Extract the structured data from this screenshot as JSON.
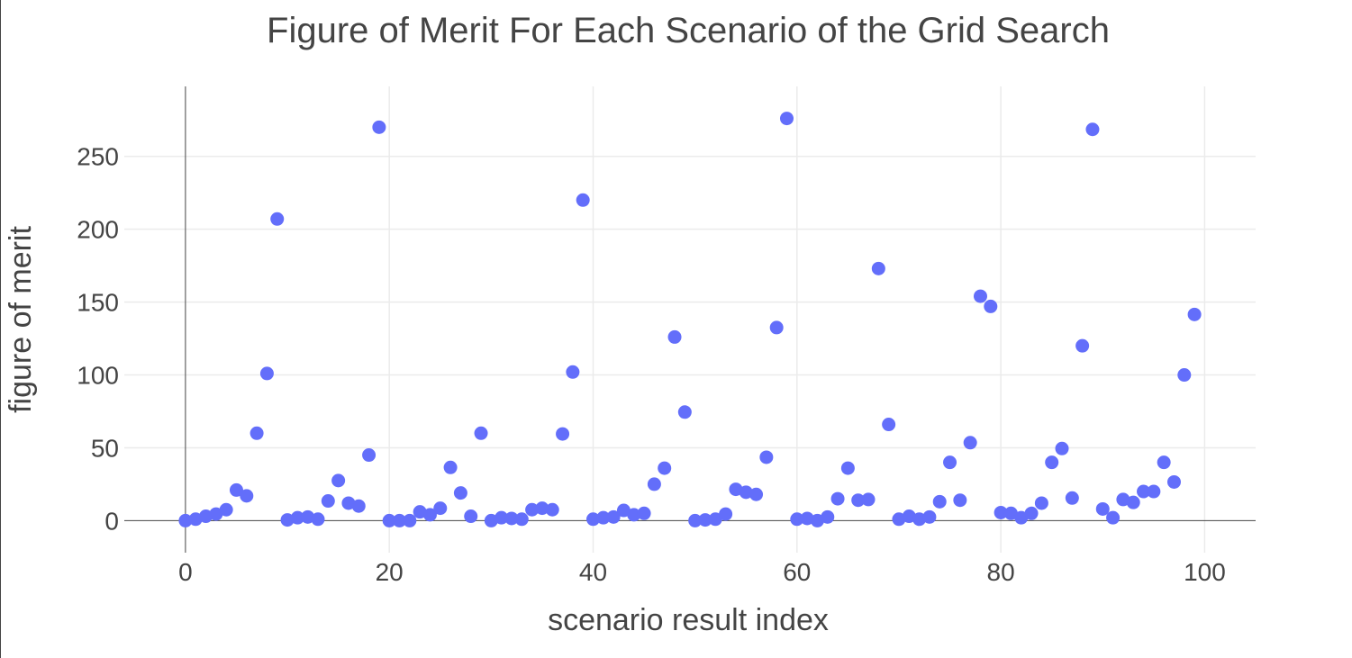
{
  "chart_data": {
    "type": "scatter",
    "title": "Figure of Merit For Each Scenario of the Grid Search",
    "xlabel": "scenario result index",
    "ylabel": "figure of merit",
    "xlim": [
      -6,
      105
    ],
    "ylim": [
      -22,
      298
    ],
    "xticks": [
      0,
      20,
      40,
      60,
      80,
      100
    ],
    "yticks": [
      0,
      50,
      100,
      150,
      200,
      250
    ],
    "grid": true,
    "marker_color": "#636efa",
    "series": [
      {
        "x": [
          0,
          1,
          2,
          3,
          4,
          5,
          6,
          7,
          8,
          9,
          10,
          11,
          12,
          13,
          14,
          15,
          16,
          17,
          18,
          19,
          20,
          21,
          22,
          23,
          24,
          25,
          26,
          27,
          28,
          29,
          30,
          31,
          32,
          33,
          34,
          35,
          36,
          37,
          38,
          39,
          40,
          41,
          42,
          43,
          44,
          45,
          46,
          47,
          48,
          49,
          50,
          51,
          52,
          53,
          54,
          55,
          56,
          57,
          58,
          59,
          60,
          61,
          62,
          63,
          64,
          65,
          66,
          67,
          68,
          69,
          70,
          71,
          72,
          73,
          74,
          75,
          76,
          77,
          78,
          79,
          80,
          81,
          82,
          83,
          84,
          85,
          86,
          87,
          88,
          89,
          90,
          91,
          92,
          93,
          94,
          95,
          96,
          97,
          98,
          99
        ],
        "y": [
          0,
          1,
          3,
          4.5,
          7.5,
          21,
          17,
          60,
          101,
          207,
          0.5,
          2,
          2.5,
          1,
          13.5,
          27.5,
          12,
          10,
          45,
          270,
          0,
          0,
          0,
          6,
          4,
          8.5,
          36.5,
          19,
          3,
          60,
          0,
          2,
          1.5,
          1,
          7.5,
          8.5,
          7.5,
          59.5,
          102,
          220,
          1,
          2,
          2.5,
          7,
          4,
          5,
          25,
          36,
          126,
          74.5,
          0,
          0.5,
          1,
          4.5,
          21.5,
          19.5,
          18,
          43.5,
          132.5,
          276,
          1,
          1.5,
          0,
          2.5,
          15,
          36,
          14,
          14.5,
          173,
          66,
          1,
          3,
          1,
          2.5,
          13,
          40,
          14,
          53.5,
          154,
          147,
          5.5,
          5,
          2,
          5,
          12,
          40,
          49.5,
          15.5,
          120,
          268.5,
          8,
          2,
          14.5,
          12.5,
          20,
          20,
          40,
          26.5,
          100,
          141.5
        ]
      }
    ]
  }
}
